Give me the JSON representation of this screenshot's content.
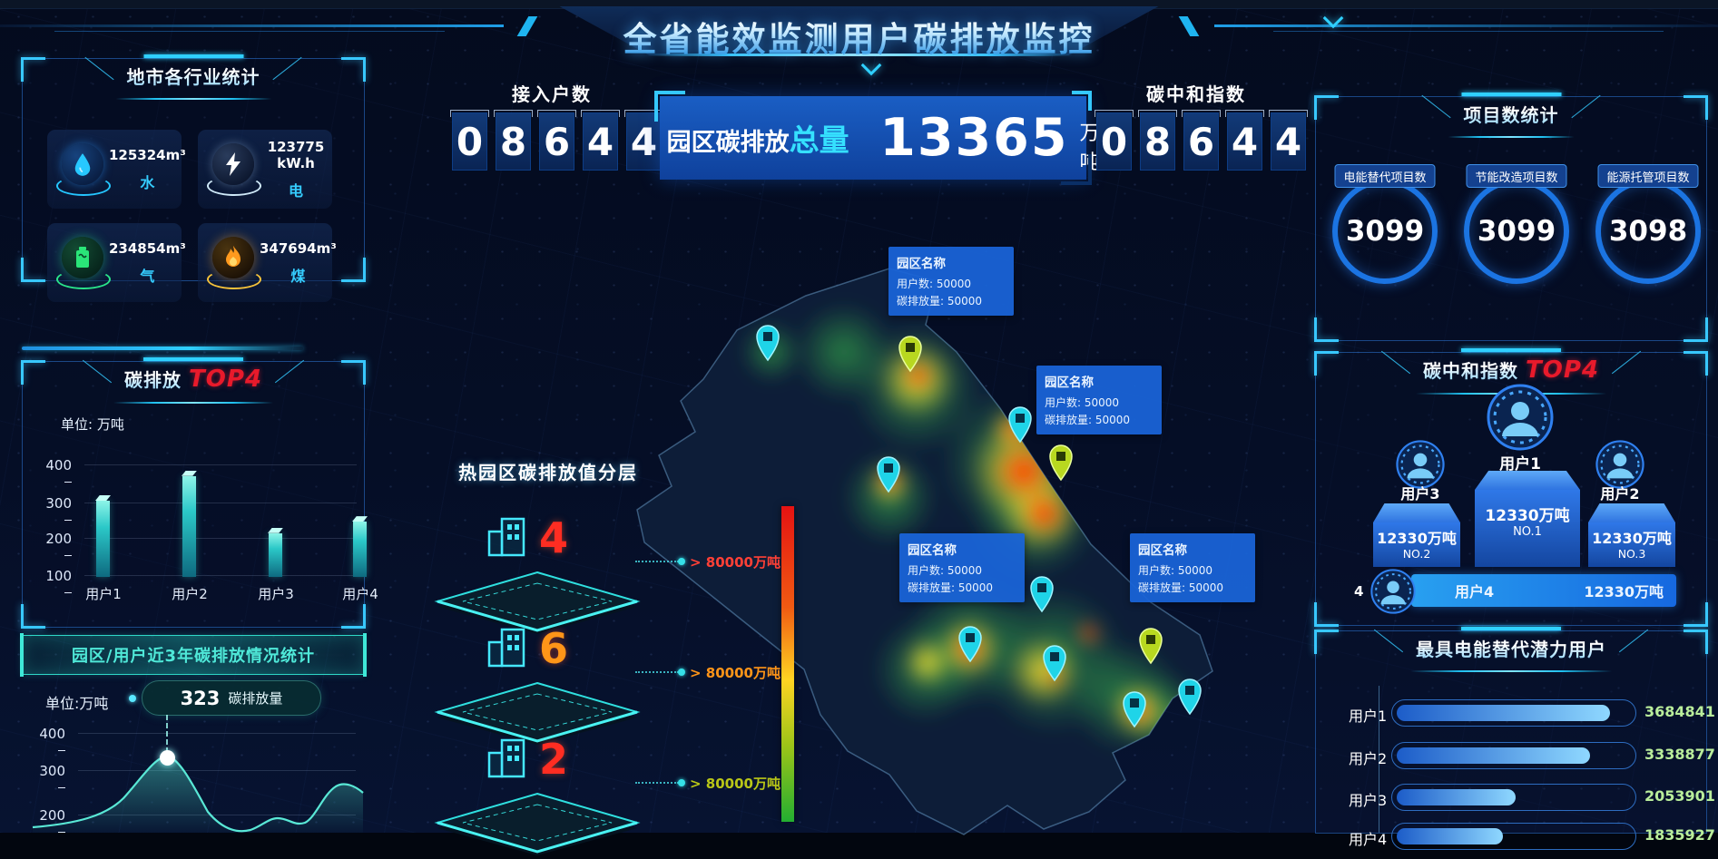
{
  "header": {
    "title": "全省能效监测用户碳排放监控"
  },
  "colors": {
    "accent_cyan": "#2fd0ff",
    "alert_red": "#e81a2b",
    "orange": "#ff9518",
    "teal": "#3fe0d0",
    "podium_blue": "#2470e8",
    "value_green": "#b9ed9b"
  },
  "left": {
    "industry": {
      "title": "地市各行业统计",
      "cards": [
        {
          "icon": "water-drop-icon",
          "value": "125324m³",
          "label": "水"
        },
        {
          "icon": "lightning-icon",
          "value": "123775 kW.h",
          "label": "电"
        },
        {
          "icon": "gas-tank-icon",
          "value": "234854m³",
          "label": "气"
        },
        {
          "icon": "coal-flame-icon",
          "value": "347694m³",
          "label": "煤"
        }
      ]
    },
    "emission_top4": {
      "title": "碳排放",
      "highlight": "TOP4",
      "unit": "单位: 万吨"
    },
    "banner": "园区/用户近3年碳排放情况统计",
    "trend": {
      "unit": "单位:万吨",
      "tooltip_value": "323",
      "tooltip_label": "碳排放量"
    }
  },
  "center": {
    "access": {
      "label": "接入户数",
      "digits": [
        "0",
        "8",
        "6",
        "4",
        "4"
      ]
    },
    "total": {
      "label": "园区碳排放",
      "highlight": "总量",
      "value": "13365",
      "unit": "万吨"
    },
    "neutral": {
      "label": "碳中和指数",
      "digits": [
        "0",
        "8",
        "6",
        "4",
        "4"
      ]
    },
    "layers": {
      "title": "热园区碳排放值分层",
      "items": [
        {
          "count": "4",
          "threshold": "> 80000万吨",
          "color": "#ff3226"
        },
        {
          "count": "6",
          "threshold": "> 80000万吨",
          "color": "#ff9518"
        },
        {
          "count": "2",
          "threshold": "> 80000万吨",
          "color": "#b9c617"
        }
      ]
    },
    "map_tooltips": [
      {
        "title": "园区名称",
        "users": "用户数: 50000",
        "emission": "碳排放量: 50000"
      },
      {
        "title": "园区名称",
        "users": "用户数: 50000",
        "emission": "碳排放量: 50000"
      },
      {
        "title": "园区名称",
        "users": "用户数: 50000",
        "emission": "碳排放量: 50000"
      },
      {
        "title": "园区名称",
        "users": "用户数: 50000",
        "emission": "碳排放量: 50000"
      }
    ]
  },
  "right": {
    "projects": {
      "title": "项目数统计",
      "items": [
        {
          "label": "电能替代项目数",
          "value": "3099"
        },
        {
          "label": "节能改造项目数",
          "value": "3099"
        },
        {
          "label": "能源托管项目数",
          "value": "3098"
        }
      ]
    },
    "neutral_top4": {
      "title": "碳中和指数",
      "highlight": "TOP4",
      "first": {
        "user": "用户1",
        "value": "12330万吨",
        "rank": "NO.1"
      },
      "second": {
        "user": "用户3",
        "value": "12330万吨",
        "rank": "NO.2"
      },
      "third": {
        "user": "用户2",
        "value": "12330万吨",
        "rank": "NO.3"
      },
      "fourth": {
        "index": "4",
        "user": "用户4",
        "value": "12330万吨"
      }
    },
    "potential_panel": {
      "title": "最具电能替代潜力用户",
      "rows": [
        {
          "user": "用户1",
          "value": "3684841"
        },
        {
          "user": "用户2",
          "value": "3338877"
        },
        {
          "user": "用户3",
          "value": "2053901"
        },
        {
          "user": "用户4",
          "value": "1835927"
        }
      ]
    }
  },
  "chart_data": [
    {
      "type": "bar",
      "title": "碳排放 TOP4",
      "ylabel": "单位: 万吨",
      "categories": [
        "用户1",
        "用户2",
        "用户3",
        "用户4"
      ],
      "values": [
        300,
        365,
        215,
        245
      ],
      "ylim": [
        100,
        400
      ],
      "yticks": [
        "400",
        "300",
        "200",
        "100"
      ],
      "grid": true,
      "legend": false
    },
    {
      "type": "area",
      "title": "园区/用户近3年碳排放情况统计",
      "ylabel": "单位:万吨",
      "yticks": [
        "400",
        "300",
        "200"
      ],
      "marked_point": {
        "value": 323,
        "label": "碳排放量"
      },
      "values_approx": [
        155,
        200,
        323,
        210,
        135,
        120,
        128,
        125,
        150,
        235,
        215
      ],
      "grid": true
    },
    {
      "type": "bar",
      "orientation": "horizontal",
      "title": "最具电能替代潜力用户",
      "categories": [
        "用户1",
        "用户2",
        "用户3",
        "用户4"
      ],
      "values": [
        3684841,
        3338877,
        2053901,
        1835927
      ],
      "xlim": [
        0,
        4200000
      ]
    }
  ]
}
